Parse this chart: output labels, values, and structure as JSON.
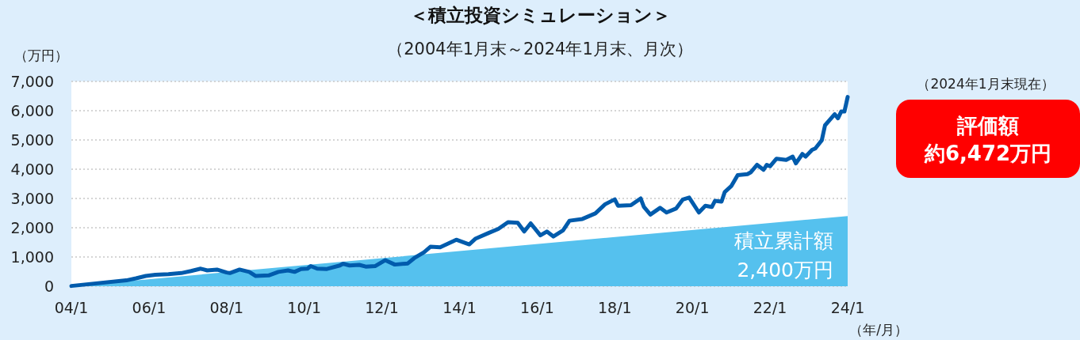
{
  "chart_data": {
    "type": "line",
    "title": "＜積立投資シミュレーション＞",
    "subtitle": "（2004年1月末～2024年1月末、月次）",
    "ylabel": "（万円）",
    "xlabel": "（年/月）",
    "xlim": [
      "2004-01",
      "2024-01"
    ],
    "xticks": [
      {
        "value": "2004-01",
        "label": "04/1"
      },
      {
        "value": "2006-01",
        "label": "06/1"
      },
      {
        "value": "2008-01",
        "label": "08/1"
      },
      {
        "value": "2010-01",
        "label": "10/1"
      },
      {
        "value": "2012-01",
        "label": "12/1"
      },
      {
        "value": "2014-01",
        "label": "14/1"
      },
      {
        "value": "2016-01",
        "label": "16/1"
      },
      {
        "value": "2018-01",
        "label": "18/1"
      },
      {
        "value": "2020-01",
        "label": "20/1"
      },
      {
        "value": "2022-01",
        "label": "22/1"
      },
      {
        "value": "2024-01",
        "label": "24/1"
      }
    ],
    "ylim": [
      0,
      7000
    ],
    "yticks": [
      {
        "value": 0,
        "label": "0"
      },
      {
        "value": 1000,
        "label": "1,000"
      },
      {
        "value": 2000,
        "label": "2,000"
      },
      {
        "value": 3000,
        "label": "3,000"
      },
      {
        "value": 4000,
        "label": "4,000"
      },
      {
        "value": 5000,
        "label": "5,000"
      },
      {
        "value": 6000,
        "label": "6,000"
      },
      {
        "value": 7000,
        "label": "7,000"
      }
    ],
    "grid": "y",
    "series": [
      {
        "type": "area",
        "name": "積立累計額",
        "color": "#55c1ee",
        "x": [
          "2004-01",
          "2024-01"
        ],
        "values": [
          0,
          2400
        ]
      },
      {
        "color": "#005bac",
        "x": [
          "2004-01",
          "2005-06",
          "2005-09",
          "2005-12",
          "2006-03",
          "2006-07",
          "2006-11",
          "2007-02",
          "2007-05",
          "2007-07",
          "2007-10",
          "2008-01",
          "2008-02",
          "2008-05",
          "2008-08",
          "2008-10",
          "2009-02",
          "2009-05",
          "2009-08",
          "2009-10",
          "2009-12",
          "2010-02",
          "2010-03",
          "2010-05",
          "2010-08",
          "2010-12",
          "2011-01",
          "2011-03",
          "2011-06",
          "2011-08",
          "2011-11",
          "2012-02",
          "2012-05",
          "2012-09",
          "2012-11",
          "2013-02",
          "2013-04",
          "2013-07",
          "2013-12",
          "2014-04",
          "2014-06",
          "2014-10",
          "2015-01",
          "2015-04",
          "2015-07",
          "2015-09",
          "2015-11",
          "2016-02",
          "2016-04",
          "2016-06",
          "2016-09",
          "2016-11",
          "2017-03",
          "2017-07",
          "2017-10",
          "2018-01",
          "2018-02",
          "2018-06",
          "2018-09",
          "2018-10",
          "2018-12",
          "2019-03",
          "2019-05",
          "2019-08",
          "2019-10",
          "2019-12",
          "2020-03",
          "2020-05",
          "2020-07",
          "2020-08",
          "2020-10",
          "2020-11",
          "2021-01",
          "2021-03",
          "2021-06",
          "2021-07",
          "2021-09",
          "2021-11",
          "2021-12",
          "2022-01",
          "2022-03",
          "2022-06",
          "2022-08",
          "2022-09",
          "2022-11",
          "2022-12",
          "2023-02",
          "2023-03",
          "2023-05",
          "2023-06",
          "2023-09",
          "2023-10",
          "2023-11",
          "2023-12",
          "2024-01"
        ],
        "values": [
          10,
          200,
          270,
          350,
          390,
          410,
          450,
          520,
          600,
          540,
          570,
          470,
          450,
          570,
          490,
          350,
          370,
          490,
          540,
          490,
          590,
          600,
          690,
          600,
          590,
          710,
          770,
          710,
          730,
          670,
          690,
          890,
          740,
          780,
          960,
          1160,
          1350,
          1330,
          1590,
          1430,
          1630,
          1820,
          1960,
          2190,
          2170,
          1870,
          2150,
          1740,
          1870,
          1700,
          1910,
          2240,
          2300,
          2490,
          2800,
          2970,
          2750,
          2770,
          3000,
          2710,
          2450,
          2680,
          2520,
          2660,
          2960,
          3030,
          2520,
          2750,
          2710,
          2920,
          2890,
          3220,
          3420,
          3800,
          3830,
          3890,
          4150,
          3980,
          4150,
          4100,
          4360,
          4320,
          4430,
          4200,
          4520,
          4430,
          4660,
          4710,
          4990,
          5500,
          5880,
          5740,
          5970,
          5970,
          6470
        ]
      }
    ],
    "annotations": [
      "（2024年1月末現在）",
      "評価額",
      "約6,472万円",
      "2,400万円"
    ]
  }
}
